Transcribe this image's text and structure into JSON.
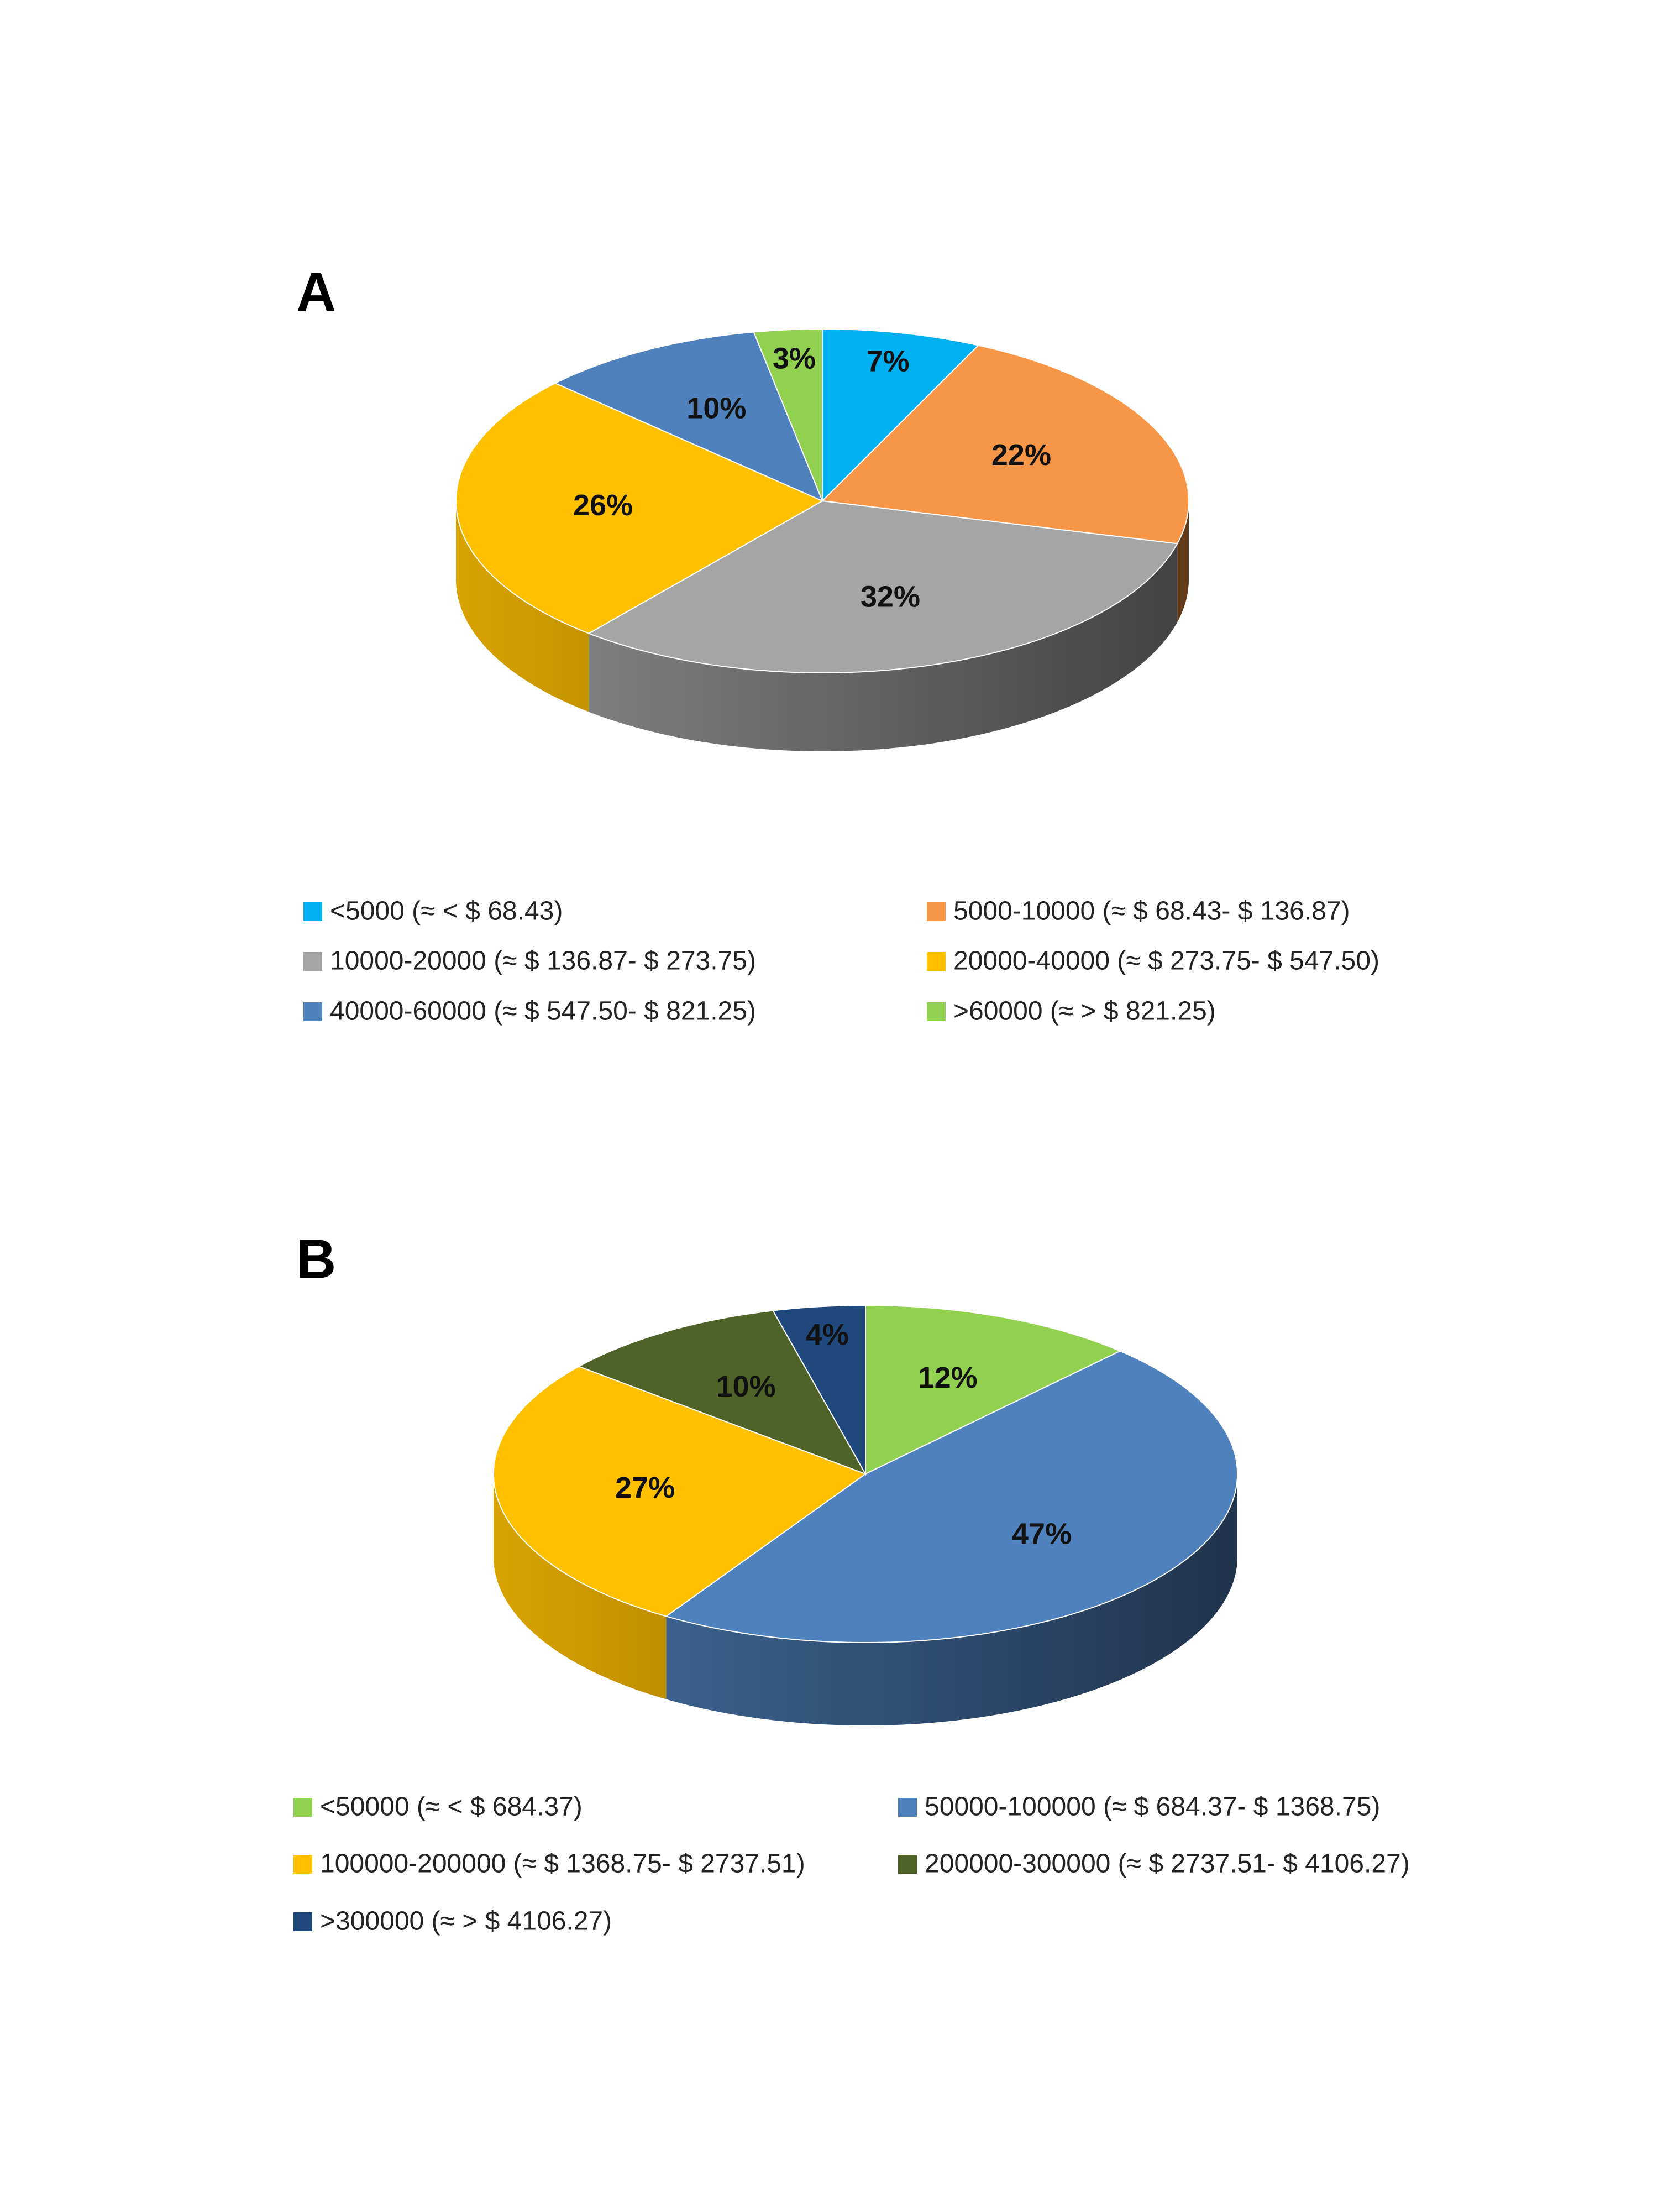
{
  "chart_data": [
    {
      "type": "pie",
      "title": "A",
      "categories": [
        "<5000 (≈ < $ 68.43)",
        "5000-10000 (≈ $ 68.43- $ 136.87)",
        "10000-20000 (≈ $ 136.87- $ 273.75)",
        "20000-40000 (≈ $ 273.75- $ 547.50)",
        "40000-60000 (≈ $ 547.50- $ 821.25)",
        ">60000 (≈ > $ 821.25)"
      ],
      "values": [
        7,
        22,
        32,
        26,
        10,
        3
      ],
      "value_labels": [
        "7%",
        "22%",
        "32%",
        "26%",
        "10%",
        "3%"
      ],
      "colors": [
        "#00b0f0",
        "#f79646",
        "#a5a5a5",
        "#ffc000",
        "#4f81bd",
        "#92d050"
      ]
    },
    {
      "type": "pie",
      "title": "B",
      "categories": [
        "<50000 (≈ < $ 684.37)",
        "50000-100000 (≈ $ 684.37- $ 1368.75)",
        "100000-200000 (≈ $ 1368.75- $ 2737.51)",
        "200000-300000 (≈ $ 2737.51- $ 4106.27)",
        ">300000 (≈ > $ 4106.27)"
      ],
      "values": [
        12,
        47,
        27,
        10,
        4
      ],
      "value_labels": [
        "12%",
        "47%",
        "27%",
        "10%",
        "4%"
      ],
      "colors": [
        "#92d050",
        "#4f81bd",
        "#ffc000",
        "#4f6228",
        "#1f497d"
      ]
    }
  ]
}
